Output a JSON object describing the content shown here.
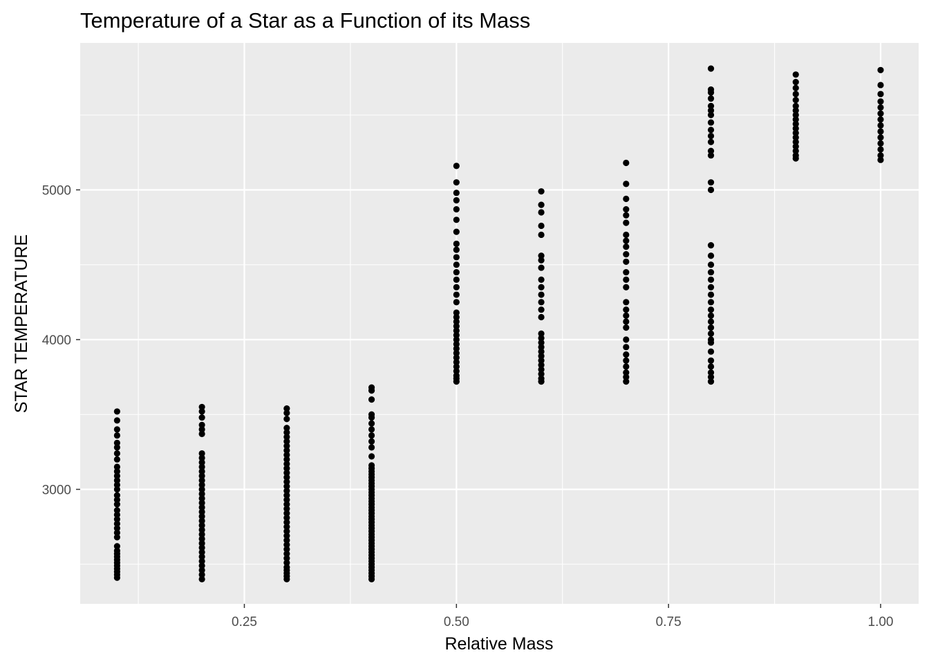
{
  "chart_data": {
    "type": "scatter",
    "title": "Temperature of a Star as a Function of its Mass",
    "xlabel": "Relative Mass",
    "ylabel": "STAR TEMPERATURE",
    "xlim": [
      0.05,
      1.0
    ],
    "ylim": [
      2400,
      5800
    ],
    "x_ticks": [
      0.25,
      0.5,
      0.75,
      1.0
    ],
    "x_tick_labels": [
      "0.25",
      "0.50",
      "0.75",
      "1.00"
    ],
    "x_minor_ticks": [
      0.125,
      0.375,
      0.625,
      0.875
    ],
    "y_ticks": [
      3000,
      4000,
      5000
    ],
    "y_tick_labels": [
      "3000",
      "4000",
      "5000"
    ],
    "y_minor_ticks": [
      2500,
      3500,
      4500,
      5500
    ],
    "grid": true,
    "legend": "none",
    "colors": {
      "panel_background": "#EBEBEB",
      "grid_line": "#FFFFFF",
      "point": "#000000",
      "tick_label": "#4D4D4D",
      "axis_tick": "#333333"
    },
    "series": [
      {
        "points": [
          [
            0.1,
            2410
          ],
          [
            0.1,
            2430
          ],
          [
            0.1,
            2450
          ],
          [
            0.1,
            2470
          ],
          [
            0.1,
            2490
          ],
          [
            0.1,
            2510
          ],
          [
            0.1,
            2530
          ],
          [
            0.1,
            2550
          ],
          [
            0.1,
            2570
          ],
          [
            0.1,
            2590
          ],
          [
            0.1,
            2620
          ],
          [
            0.1,
            2680
          ],
          [
            0.1,
            2710
          ],
          [
            0.1,
            2740
          ],
          [
            0.1,
            2770
          ],
          [
            0.1,
            2800
          ],
          [
            0.1,
            2830
          ],
          [
            0.1,
            2860
          ],
          [
            0.1,
            2900
          ],
          [
            0.1,
            2930
          ],
          [
            0.1,
            2960
          ],
          [
            0.1,
            3000
          ],
          [
            0.1,
            3030
          ],
          [
            0.1,
            3060
          ],
          [
            0.1,
            3090
          ],
          [
            0.1,
            3120
          ],
          [
            0.1,
            3150
          ],
          [
            0.1,
            3200
          ],
          [
            0.1,
            3240
          ],
          [
            0.1,
            3280
          ],
          [
            0.1,
            3310
          ],
          [
            0.1,
            3360
          ],
          [
            0.1,
            3400
          ],
          [
            0.1,
            3460
          ],
          [
            0.1,
            3520
          ],
          [
            0.2,
            2400
          ],
          [
            0.2,
            2430
          ],
          [
            0.2,
            2460
          ],
          [
            0.2,
            2490
          ],
          [
            0.2,
            2520
          ],
          [
            0.2,
            2550
          ],
          [
            0.2,
            2580
          ],
          [
            0.2,
            2610
          ],
          [
            0.2,
            2640
          ],
          [
            0.2,
            2670
          ],
          [
            0.2,
            2700
          ],
          [
            0.2,
            2730
          ],
          [
            0.2,
            2760
          ],
          [
            0.2,
            2790
          ],
          [
            0.2,
            2820
          ],
          [
            0.2,
            2850
          ],
          [
            0.2,
            2880
          ],
          [
            0.2,
            2910
          ],
          [
            0.2,
            2940
          ],
          [
            0.2,
            2970
          ],
          [
            0.2,
            3000
          ],
          [
            0.2,
            3030
          ],
          [
            0.2,
            3060
          ],
          [
            0.2,
            3090
          ],
          [
            0.2,
            3120
          ],
          [
            0.2,
            3150
          ],
          [
            0.2,
            3180
          ],
          [
            0.2,
            3210
          ],
          [
            0.2,
            3240
          ],
          [
            0.2,
            3370
          ],
          [
            0.2,
            3400
          ],
          [
            0.2,
            3430
          ],
          [
            0.2,
            3480
          ],
          [
            0.2,
            3520
          ],
          [
            0.2,
            3550
          ],
          [
            0.3,
            2400
          ],
          [
            0.3,
            2420
          ],
          [
            0.3,
            2440
          ],
          [
            0.3,
            2460
          ],
          [
            0.3,
            2480
          ],
          [
            0.3,
            2510
          ],
          [
            0.3,
            2540
          ],
          [
            0.3,
            2570
          ],
          [
            0.3,
            2600
          ],
          [
            0.3,
            2630
          ],
          [
            0.3,
            2660
          ],
          [
            0.3,
            2690
          ],
          [
            0.3,
            2720
          ],
          [
            0.3,
            2750
          ],
          [
            0.3,
            2780
          ],
          [
            0.3,
            2810
          ],
          [
            0.3,
            2840
          ],
          [
            0.3,
            2870
          ],
          [
            0.3,
            2900
          ],
          [
            0.3,
            2930
          ],
          [
            0.3,
            2960
          ],
          [
            0.3,
            2990
          ],
          [
            0.3,
            3020
          ],
          [
            0.3,
            3050
          ],
          [
            0.3,
            3080
          ],
          [
            0.3,
            3110
          ],
          [
            0.3,
            3140
          ],
          [
            0.3,
            3170
          ],
          [
            0.3,
            3200
          ],
          [
            0.3,
            3230
          ],
          [
            0.3,
            3260
          ],
          [
            0.3,
            3290
          ],
          [
            0.3,
            3320
          ],
          [
            0.3,
            3350
          ],
          [
            0.3,
            3380
          ],
          [
            0.3,
            3410
          ],
          [
            0.3,
            3470
          ],
          [
            0.3,
            3510
          ],
          [
            0.3,
            3540
          ],
          [
            0.4,
            2400
          ],
          [
            0.4,
            2420
          ],
          [
            0.4,
            2440
          ],
          [
            0.4,
            2460
          ],
          [
            0.4,
            2480
          ],
          [
            0.4,
            2500
          ],
          [
            0.4,
            2520
          ],
          [
            0.4,
            2540
          ],
          [
            0.4,
            2560
          ],
          [
            0.4,
            2580
          ],
          [
            0.4,
            2600
          ],
          [
            0.4,
            2620
          ],
          [
            0.4,
            2640
          ],
          [
            0.4,
            2660
          ],
          [
            0.4,
            2680
          ],
          [
            0.4,
            2700
          ],
          [
            0.4,
            2720
          ],
          [
            0.4,
            2740
          ],
          [
            0.4,
            2760
          ],
          [
            0.4,
            2780
          ],
          [
            0.4,
            2800
          ],
          [
            0.4,
            2820
          ],
          [
            0.4,
            2840
          ],
          [
            0.4,
            2860
          ],
          [
            0.4,
            2880
          ],
          [
            0.4,
            2900
          ],
          [
            0.4,
            2920
          ],
          [
            0.4,
            2940
          ],
          [
            0.4,
            2960
          ],
          [
            0.4,
            2980
          ],
          [
            0.4,
            3000
          ],
          [
            0.4,
            3020
          ],
          [
            0.4,
            3040
          ],
          [
            0.4,
            3060
          ],
          [
            0.4,
            3080
          ],
          [
            0.4,
            3100
          ],
          [
            0.4,
            3120
          ],
          [
            0.4,
            3140
          ],
          [
            0.4,
            3160
          ],
          [
            0.4,
            3220
          ],
          [
            0.4,
            3280
          ],
          [
            0.4,
            3320
          ],
          [
            0.4,
            3360
          ],
          [
            0.4,
            3400
          ],
          [
            0.4,
            3440
          ],
          [
            0.4,
            3480
          ],
          [
            0.4,
            3500
          ],
          [
            0.4,
            3600
          ],
          [
            0.4,
            3660
          ],
          [
            0.4,
            3680
          ],
          [
            0.5,
            3720
          ],
          [
            0.5,
            3740
          ],
          [
            0.5,
            3760
          ],
          [
            0.5,
            3790
          ],
          [
            0.5,
            3820
          ],
          [
            0.5,
            3850
          ],
          [
            0.5,
            3880
          ],
          [
            0.5,
            3910
          ],
          [
            0.5,
            3940
          ],
          [
            0.5,
            3970
          ],
          [
            0.5,
            4000
          ],
          [
            0.5,
            4030
          ],
          [
            0.5,
            4060
          ],
          [
            0.5,
            4090
          ],
          [
            0.5,
            4120
          ],
          [
            0.5,
            4150
          ],
          [
            0.5,
            4180
          ],
          [
            0.5,
            4250
          ],
          [
            0.5,
            4300
          ],
          [
            0.5,
            4350
          ],
          [
            0.5,
            4400
          ],
          [
            0.5,
            4450
          ],
          [
            0.5,
            4500
          ],
          [
            0.5,
            4550
          ],
          [
            0.5,
            4600
          ],
          [
            0.5,
            4640
          ],
          [
            0.5,
            4720
          ],
          [
            0.5,
            4800
          ],
          [
            0.5,
            4870
          ],
          [
            0.5,
            4930
          ],
          [
            0.5,
            4980
          ],
          [
            0.5,
            5050
          ],
          [
            0.5,
            5160
          ],
          [
            0.6,
            3720
          ],
          [
            0.6,
            3740
          ],
          [
            0.6,
            3770
          ],
          [
            0.6,
            3800
          ],
          [
            0.6,
            3830
          ],
          [
            0.6,
            3860
          ],
          [
            0.6,
            3890
          ],
          [
            0.6,
            3920
          ],
          [
            0.6,
            3950
          ],
          [
            0.6,
            3980
          ],
          [
            0.6,
            4010
          ],
          [
            0.6,
            4040
          ],
          [
            0.6,
            4150
          ],
          [
            0.6,
            4200
          ],
          [
            0.6,
            4250
          ],
          [
            0.6,
            4300
          ],
          [
            0.6,
            4350
          ],
          [
            0.6,
            4400
          ],
          [
            0.6,
            4480
          ],
          [
            0.6,
            4530
          ],
          [
            0.6,
            4560
          ],
          [
            0.6,
            4700
          ],
          [
            0.6,
            4760
          ],
          [
            0.6,
            4850
          ],
          [
            0.6,
            4900
          ],
          [
            0.6,
            4990
          ],
          [
            0.7,
            3720
          ],
          [
            0.7,
            3750
          ],
          [
            0.7,
            3780
          ],
          [
            0.7,
            3820
          ],
          [
            0.7,
            3860
          ],
          [
            0.7,
            3900
          ],
          [
            0.7,
            3950
          ],
          [
            0.7,
            4000
          ],
          [
            0.7,
            4080
          ],
          [
            0.7,
            4120
          ],
          [
            0.7,
            4160
          ],
          [
            0.7,
            4200
          ],
          [
            0.7,
            4250
          ],
          [
            0.7,
            4350
          ],
          [
            0.7,
            4400
          ],
          [
            0.7,
            4450
          ],
          [
            0.7,
            4520
          ],
          [
            0.7,
            4570
          ],
          [
            0.7,
            4620
          ],
          [
            0.7,
            4660
          ],
          [
            0.7,
            4700
          ],
          [
            0.7,
            4780
          ],
          [
            0.7,
            4830
          ],
          [
            0.7,
            4870
          ],
          [
            0.7,
            4940
          ],
          [
            0.7,
            5040
          ],
          [
            0.7,
            5180
          ],
          [
            0.8,
            3720
          ],
          [
            0.8,
            3750
          ],
          [
            0.8,
            3780
          ],
          [
            0.8,
            3820
          ],
          [
            0.8,
            3860
          ],
          [
            0.8,
            3920
          ],
          [
            0.8,
            3980
          ],
          [
            0.8,
            4000
          ],
          [
            0.8,
            4040
          ],
          [
            0.8,
            4080
          ],
          [
            0.8,
            4120
          ],
          [
            0.8,
            4160
          ],
          [
            0.8,
            4200
          ],
          [
            0.8,
            4250
          ],
          [
            0.8,
            4300
          ],
          [
            0.8,
            4350
          ],
          [
            0.8,
            4400
          ],
          [
            0.8,
            4450
          ],
          [
            0.8,
            4500
          ],
          [
            0.8,
            4560
          ],
          [
            0.8,
            4630
          ],
          [
            0.8,
            5000
          ],
          [
            0.8,
            5050
          ],
          [
            0.8,
            5230
          ],
          [
            0.8,
            5260
          ],
          [
            0.8,
            5320
          ],
          [
            0.8,
            5360
          ],
          [
            0.8,
            5400
          ],
          [
            0.8,
            5450
          ],
          [
            0.8,
            5500
          ],
          [
            0.8,
            5530
          ],
          [
            0.8,
            5560
          ],
          [
            0.8,
            5610
          ],
          [
            0.8,
            5650
          ],
          [
            0.8,
            5670
          ],
          [
            0.8,
            5810
          ],
          [
            0.9,
            5210
          ],
          [
            0.9,
            5230
          ],
          [
            0.9,
            5260
          ],
          [
            0.9,
            5290
          ],
          [
            0.9,
            5320
          ],
          [
            0.9,
            5350
          ],
          [
            0.9,
            5380
          ],
          [
            0.9,
            5410
          ],
          [
            0.9,
            5440
          ],
          [
            0.9,
            5470
          ],
          [
            0.9,
            5500
          ],
          [
            0.9,
            5530
          ],
          [
            0.9,
            5560
          ],
          [
            0.9,
            5600
          ],
          [
            0.9,
            5640
          ],
          [
            0.9,
            5680
          ],
          [
            0.9,
            5720
          ],
          [
            0.9,
            5770
          ],
          [
            1.0,
            5200
          ],
          [
            1.0,
            5230
          ],
          [
            1.0,
            5270
          ],
          [
            1.0,
            5310
          ],
          [
            1.0,
            5350
          ],
          [
            1.0,
            5390
          ],
          [
            1.0,
            5430
          ],
          [
            1.0,
            5470
          ],
          [
            1.0,
            5510
          ],
          [
            1.0,
            5550
          ],
          [
            1.0,
            5590
          ],
          [
            1.0,
            5640
          ],
          [
            1.0,
            5700
          ],
          [
            1.0,
            5800
          ]
        ]
      }
    ]
  }
}
